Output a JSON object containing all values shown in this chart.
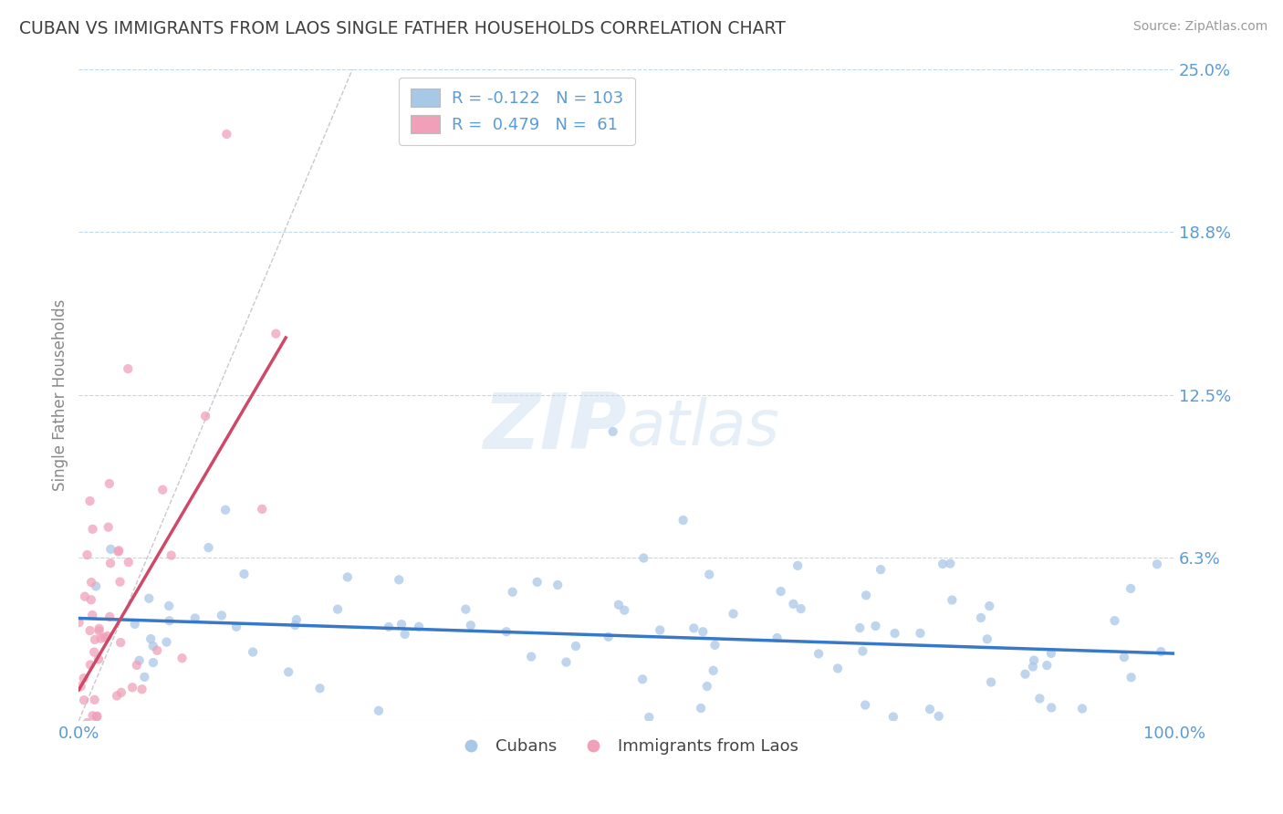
{
  "title": "CUBAN VS IMMIGRANTS FROM LAOS SINGLE FATHER HOUSEHOLDS CORRELATION CHART",
  "source": "Source: ZipAtlas.com",
  "ylabel": "Single Father Households",
  "watermark_zip": "ZIP",
  "watermark_atlas": "atlas",
  "blue_color": "#A8C8E8",
  "pink_color": "#F0A0B8",
  "trend_blue": "#3878C8",
  "trend_pink": "#D04868",
  "diag_color": "#C8C8D0",
  "ylabel_color": "#5B9BD5",
  "title_color": "#404040",
  "background": "#FFFFFF",
  "xlim": [
    0.0,
    1.0
  ],
  "ylim": [
    0.0,
    0.25
  ],
  "yticks": [
    0.0,
    0.0625,
    0.125,
    0.1875,
    0.25
  ],
  "ytick_labels": [
    "",
    "6.3%",
    "12.5%",
    "18.8%",
    "25.0%"
  ],
  "seed": 17,
  "n_blue": 103,
  "n_pink": 61,
  "r_blue": -0.122,
  "r_pink": 0.479
}
